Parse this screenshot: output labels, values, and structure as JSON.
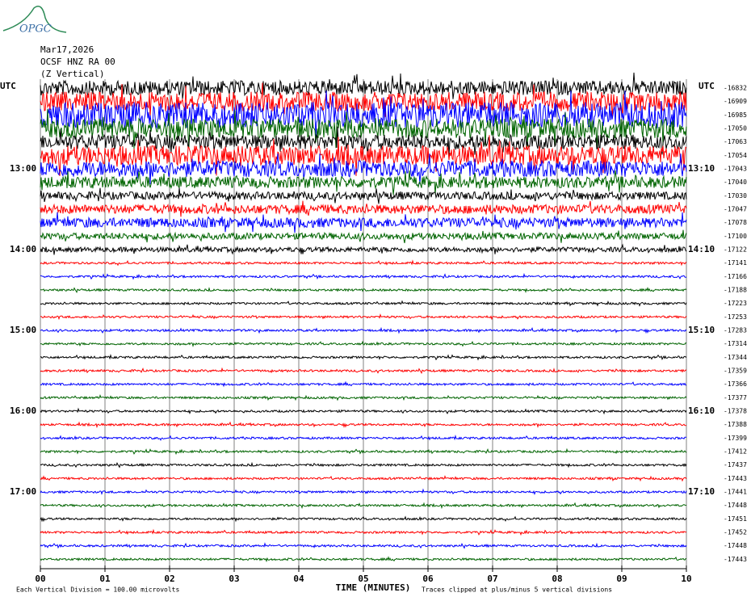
{
  "chart_data": {
    "type": "helicorder",
    "logo": "OPGC",
    "date": "Mar17,2026",
    "station": "OCSF HNZ RA 00",
    "component": "(Z Vertical)",
    "left_unit": "UTC",
    "right_unit": "UTC",
    "left_time_labels": [
      "13:00",
      "14:00",
      "15:00",
      "16:00",
      "17:00"
    ],
    "right_time_labels": [
      "13:10",
      "14:10",
      "15:10",
      "16:10",
      "17:10"
    ],
    "trace_offsets": [
      -16832,
      -16909,
      -16985,
      -17050,
      -17063,
      -17054,
      -17043,
      -17040,
      -17030,
      -17047,
      -17078,
      -17100,
      -17122,
      -17141,
      -17166,
      -17188,
      -17223,
      -17253,
      -17283,
      -17314,
      -17344,
      -17359,
      -17366,
      -17377,
      -17378,
      -17388,
      -17399,
      -17412,
      -17437,
      -17443,
      -17441,
      -17448,
      -17451,
      -17452,
      -17448,
      -17443
    ],
    "trace_colors": [
      "#000000",
      "#ff0000",
      "#0000ff",
      "#006400"
    ],
    "x_label": "TIME (MINUTES)",
    "xlim": [
      0,
      10
    ],
    "xticks": [
      {
        "value": 0,
        "label": "00"
      },
      {
        "value": 1,
        "label": "01"
      },
      {
        "value": 2,
        "label": "02"
      },
      {
        "value": 3,
        "label": "03"
      },
      {
        "value": 4,
        "label": "04"
      },
      {
        "value": 5,
        "label": "05"
      },
      {
        "value": 6,
        "label": "06"
      },
      {
        "value": 7,
        "label": "07"
      },
      {
        "value": 8,
        "label": "08"
      },
      {
        "value": 9,
        "label": "09"
      },
      {
        "value": 10,
        "label": "10"
      }
    ],
    "scale_note": "Each Vertical Division =  100.00 microvolts",
    "clip_note": "Traces clipped at plus/minus 5 vertical divisions"
  }
}
